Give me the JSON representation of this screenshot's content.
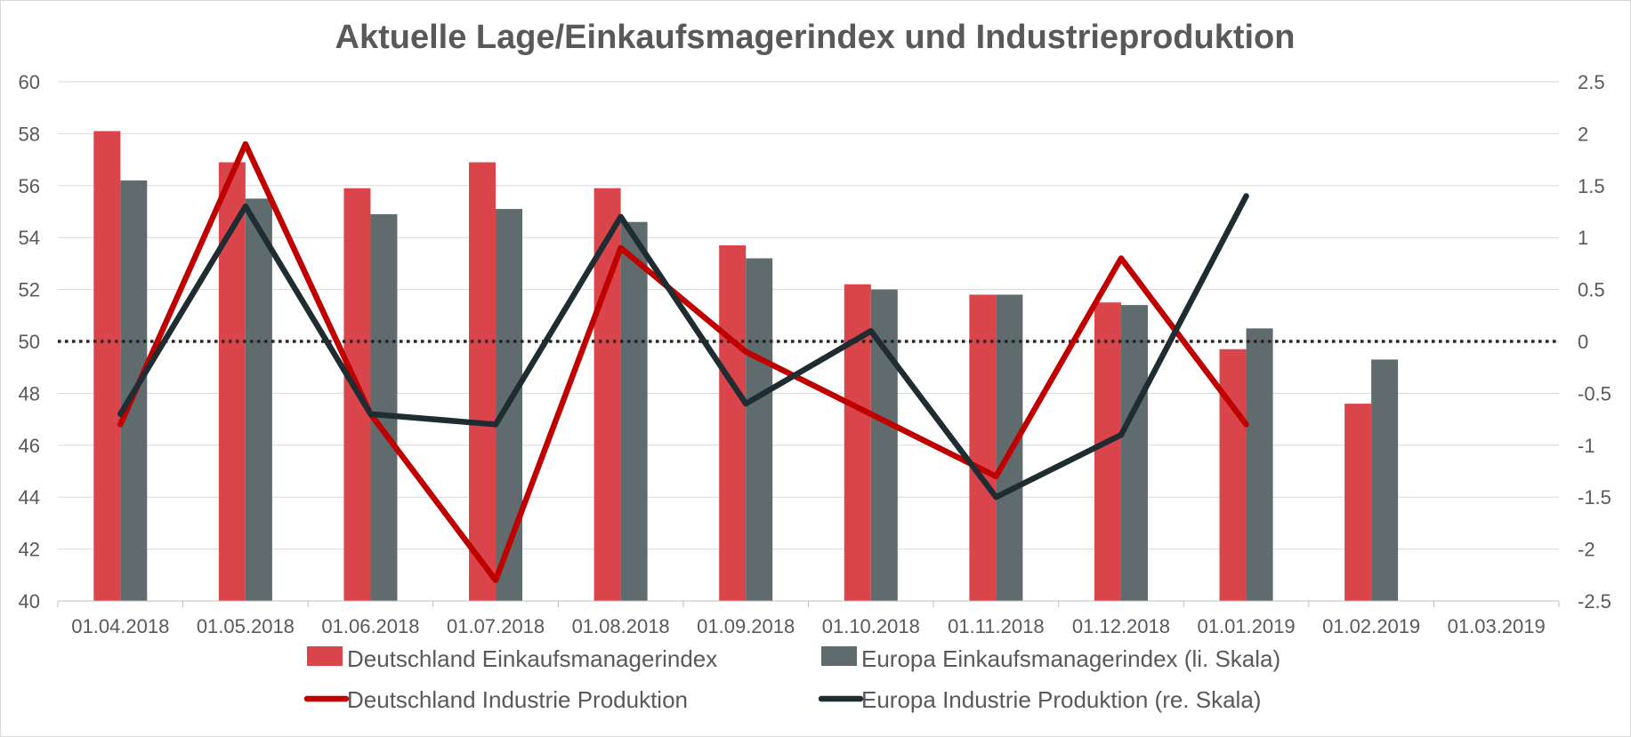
{
  "chart_data": {
    "type": "bar",
    "title": "Aktuelle Lage/Einkaufsmagerindex und Industrieproduktion",
    "categories": [
      "01.04.2018",
      "01.05.2018",
      "01.06.2018",
      "01.07.2018",
      "01.08.2018",
      "01.09.2018",
      "01.10.2018",
      "01.11.2018",
      "01.12.2018",
      "01.01.2019",
      "01.02.2019",
      "01.03.2019"
    ],
    "y_left": {
      "min": 40,
      "max": 60,
      "step": 2,
      "ticks": [
        "40",
        "42",
        "44",
        "46",
        "48",
        "50",
        "52",
        "54",
        "56",
        "58",
        "60"
      ]
    },
    "y_right": {
      "min": -2.5,
      "max": 2.5,
      "step": 0.5,
      "ticks": [
        "-2.5",
        "-2",
        "-1.5",
        "-1",
        "-0.5",
        "0",
        "0.5",
        "1",
        "1.5",
        "2",
        "2.5"
      ]
    },
    "reference_line": {
      "axis": "left",
      "value": 50,
      "style": "dotted"
    },
    "grid": true,
    "legend_position": "bottom",
    "series": [
      {
        "name": "Deutschland Einkaufsmanagerindex",
        "kind": "bar",
        "axis": "left",
        "color": "#d9454a",
        "values": [
          58.1,
          56.9,
          55.9,
          56.9,
          55.9,
          53.7,
          52.2,
          51.8,
          51.5,
          49.7,
          47.6,
          null
        ]
      },
      {
        "name": "Europa Einkaufsmanagerindex (li. Skala)",
        "kind": "bar",
        "axis": "left",
        "color": "#5f6b6d",
        "values": [
          56.2,
          55.5,
          54.9,
          55.1,
          54.6,
          53.2,
          52.0,
          51.8,
          51.4,
          50.5,
          49.3,
          null
        ]
      },
      {
        "name": "Deutschland Industrie Produktion",
        "kind": "line",
        "axis": "right",
        "color": "#c00000",
        "values": [
          -0.8,
          1.9,
          -0.7,
          -2.3,
          0.9,
          -0.1,
          -0.7,
          -1.3,
          0.8,
          -0.8,
          null,
          null
        ]
      },
      {
        "name": "Europa Industrie Produktion (re. Skala)",
        "kind": "line",
        "axis": "right",
        "color": "#1f2d33",
        "values": [
          -0.7,
          1.3,
          -0.7,
          -0.8,
          1.2,
          -0.6,
          0.1,
          -1.5,
          -0.9,
          1.4,
          null,
          null
        ]
      }
    ]
  }
}
